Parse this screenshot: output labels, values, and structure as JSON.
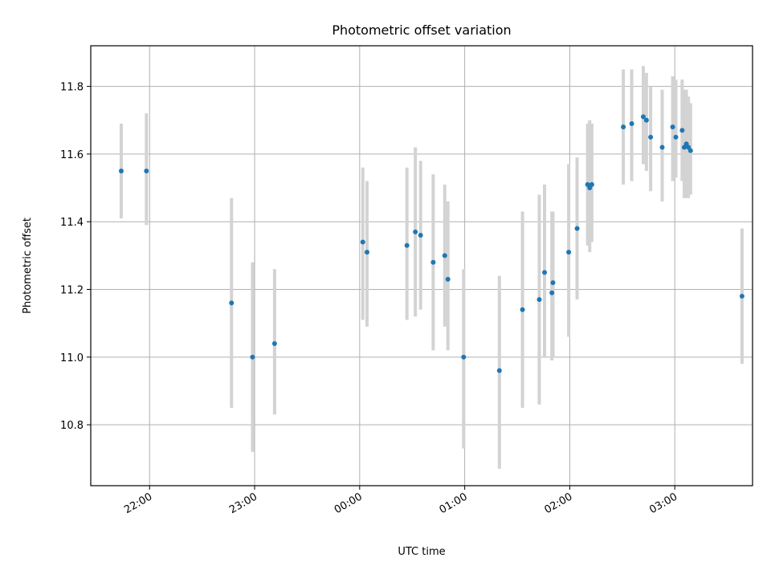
{
  "chart_data": {
    "type": "scatter",
    "title": "Photometric offset variation",
    "xlabel": "UTC time",
    "ylabel": "Photometric offset",
    "x_unit": "hours since 22:00 UTC",
    "xlim": [
      -0.56,
      5.74
    ],
    "ylim": [
      10.62,
      11.92
    ],
    "x_ticks": [
      {
        "value": 0,
        "label": "22:00"
      },
      {
        "value": 1,
        "label": "23:00"
      },
      {
        "value": 2,
        "label": "00:00"
      },
      {
        "value": 3,
        "label": "01:00"
      },
      {
        "value": 4,
        "label": "02:00"
      },
      {
        "value": 5,
        "label": "03:00"
      }
    ],
    "y_ticks": [
      {
        "value": 10.8,
        "label": "10.8"
      },
      {
        "value": 11.0,
        "label": "11.0"
      },
      {
        "value": 11.2,
        "label": "11.2"
      },
      {
        "value": 11.4,
        "label": "11.4"
      },
      {
        "value": 11.6,
        "label": "11.6"
      },
      {
        "value": 11.8,
        "label": "11.8"
      }
    ],
    "grid": true,
    "point_color": "#1f77b4",
    "errorbar_color": "#d3d3d3",
    "points": [
      {
        "x": -0.27,
        "y": 11.55,
        "lo": 11.41,
        "hi": 11.69
      },
      {
        "x": -0.03,
        "y": 11.55,
        "lo": 11.39,
        "hi": 11.72
      },
      {
        "x": 0.78,
        "y": 11.16,
        "lo": 10.85,
        "hi": 11.47
      },
      {
        "x": 0.98,
        "y": 11.0,
        "lo": 10.72,
        "hi": 11.28
      },
      {
        "x": 1.19,
        "y": 11.04,
        "lo": 10.83,
        "hi": 11.26
      },
      {
        "x": 2.03,
        "y": 11.34,
        "lo": 11.11,
        "hi": 11.56
      },
      {
        "x": 2.07,
        "y": 11.31,
        "lo": 11.09,
        "hi": 11.52
      },
      {
        "x": 2.45,
        "y": 11.33,
        "lo": 11.11,
        "hi": 11.56
      },
      {
        "x": 2.53,
        "y": 11.37,
        "lo": 11.12,
        "hi": 11.62
      },
      {
        "x": 2.58,
        "y": 11.36,
        "lo": 11.14,
        "hi": 11.58
      },
      {
        "x": 2.7,
        "y": 11.28,
        "lo": 11.02,
        "hi": 11.54
      },
      {
        "x": 2.81,
        "y": 11.3,
        "lo": 11.09,
        "hi": 11.51
      },
      {
        "x": 2.84,
        "y": 11.23,
        "lo": 11.02,
        "hi": 11.46
      },
      {
        "x": 2.99,
        "y": 11.0,
        "lo": 10.73,
        "hi": 11.26
      },
      {
        "x": 3.33,
        "y": 10.96,
        "lo": 10.67,
        "hi": 11.24
      },
      {
        "x": 3.55,
        "y": 11.14,
        "lo": 10.85,
        "hi": 11.43
      },
      {
        "x": 3.71,
        "y": 11.17,
        "lo": 10.86,
        "hi": 11.48
      },
      {
        "x": 3.76,
        "y": 11.25,
        "lo": 11.0,
        "hi": 11.51
      },
      {
        "x": 3.83,
        "y": 11.19,
        "lo": 10.99,
        "hi": 11.43
      },
      {
        "x": 3.84,
        "y": 11.22,
        "lo": 11.0,
        "hi": 11.43
      },
      {
        "x": 3.99,
        "y": 11.31,
        "lo": 11.06,
        "hi": 11.57
      },
      {
        "x": 4.07,
        "y": 11.38,
        "lo": 11.17,
        "hi": 11.59
      },
      {
        "x": 4.17,
        "y": 11.51,
        "lo": 11.33,
        "hi": 11.69
      },
      {
        "x": 4.19,
        "y": 11.5,
        "lo": 11.31,
        "hi": 11.7
      },
      {
        "x": 4.21,
        "y": 11.51,
        "lo": 11.34,
        "hi": 11.69
      },
      {
        "x": 4.51,
        "y": 11.68,
        "lo": 11.51,
        "hi": 11.85
      },
      {
        "x": 4.59,
        "y": 11.69,
        "lo": 11.52,
        "hi": 11.85
      },
      {
        "x": 4.7,
        "y": 11.71,
        "lo": 11.57,
        "hi": 11.86
      },
      {
        "x": 4.73,
        "y": 11.7,
        "lo": 11.55,
        "hi": 11.84
      },
      {
        "x": 4.77,
        "y": 11.65,
        "lo": 11.49,
        "hi": 11.8
      },
      {
        "x": 4.88,
        "y": 11.62,
        "lo": 11.46,
        "hi": 11.79
      },
      {
        "x": 4.98,
        "y": 11.68,
        "lo": 11.52,
        "hi": 11.83
      },
      {
        "x": 5.01,
        "y": 11.65,
        "lo": 11.53,
        "hi": 11.82
      },
      {
        "x": 5.07,
        "y": 11.67,
        "lo": 11.52,
        "hi": 11.82
      },
      {
        "x": 5.09,
        "y": 11.62,
        "lo": 11.47,
        "hi": 11.79
      },
      {
        "x": 5.11,
        "y": 11.63,
        "lo": 11.47,
        "hi": 11.79
      },
      {
        "x": 5.13,
        "y": 11.62,
        "lo": 11.47,
        "hi": 11.77
      },
      {
        "x": 5.15,
        "y": 11.61,
        "lo": 11.48,
        "hi": 11.75
      },
      {
        "x": 5.64,
        "y": 11.18,
        "lo": 10.98,
        "hi": 11.38
      }
    ]
  }
}
